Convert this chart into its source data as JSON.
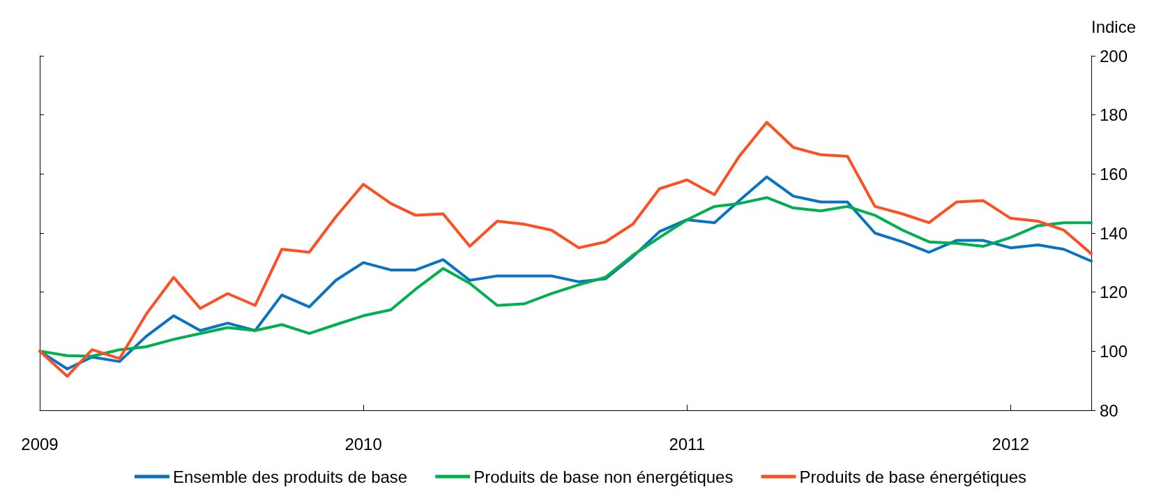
{
  "chart_data": {
    "type": "line",
    "ylabel": "Indice",
    "x": [
      "2009-01",
      "2009-02",
      "2009-03",
      "2009-04",
      "2009-05",
      "2009-06",
      "2009-07",
      "2009-08",
      "2009-09",
      "2009-10",
      "2009-11",
      "2009-12",
      "2010-01",
      "2010-02",
      "2010-03",
      "2010-04",
      "2010-05",
      "2010-06",
      "2010-07",
      "2010-08",
      "2010-09",
      "2010-10",
      "2010-11",
      "2010-12",
      "2011-01",
      "2011-02",
      "2011-03",
      "2011-04",
      "2011-05",
      "2011-06",
      "2011-07",
      "2011-08",
      "2011-09",
      "2011-10",
      "2011-11",
      "2011-12",
      "2012-01",
      "2012-02",
      "2012-03",
      "2012-04"
    ],
    "series": [
      {
        "name": "Ensemble des produits de base",
        "color": "#0a72c2",
        "values": [
          100,
          94,
          98,
          96.5,
          105,
          112,
          107,
          109.5,
          107,
          119,
          115,
          124,
          130,
          127.5,
          127.5,
          131,
          124,
          125.5,
          125.5,
          125.5,
          123.5,
          124.5,
          132,
          140.5,
          144.5,
          143.5,
          151,
          159,
          152.5,
          150.5,
          150.5,
          140,
          137,
          133.5,
          137.5,
          137.5,
          135,
          136,
          134.5,
          130.5
        ]
      },
      {
        "name": "Produits de base non énergétiques",
        "color": "#00b04f",
        "values": [
          100,
          98.5,
          98.3,
          100.5,
          101.5,
          104,
          106,
          108,
          107,
          109,
          106,
          109,
          112,
          114,
          121,
          128,
          123,
          115.5,
          116,
          119.5,
          122.5,
          125,
          132.5,
          138.5,
          144.5,
          149,
          150,
          152,
          148.5,
          147.5,
          149,
          146,
          141,
          137,
          136.5,
          135.5,
          138.5,
          142.5,
          143.5,
          143.5
        ]
      },
      {
        "name": "Produits de base énergétiques",
        "color": "#fc4f24",
        "values": [
          100,
          91.5,
          100.5,
          97.5,
          112.5,
          125,
          114.5,
          119.5,
          115.5,
          134.5,
          133.5,
          145.5,
          156.5,
          150,
          146,
          146.5,
          135.5,
          144,
          143,
          141,
          135,
          137,
          143,
          155,
          158,
          153,
          166,
          177.5,
          169,
          166.5,
          166,
          149,
          146.5,
          143.5,
          150.5,
          151,
          145,
          144,
          141,
          133
        ]
      }
    ],
    "xlim": [
      "2009-01",
      "2012-04"
    ],
    "xticks": [
      {
        "value": "2009-01",
        "label": "2009"
      },
      {
        "value": "2010-01",
        "label": "2010"
      },
      {
        "value": "2011-01",
        "label": "2011"
      },
      {
        "value": "2012-01",
        "label": "2012"
      }
    ],
    "ylim": [
      80,
      200
    ],
    "yticks": [
      80,
      100,
      120,
      140,
      160,
      180,
      200
    ],
    "grid": false,
    "legend": "bottom",
    "marker": "none",
    "line_style": "solid"
  }
}
